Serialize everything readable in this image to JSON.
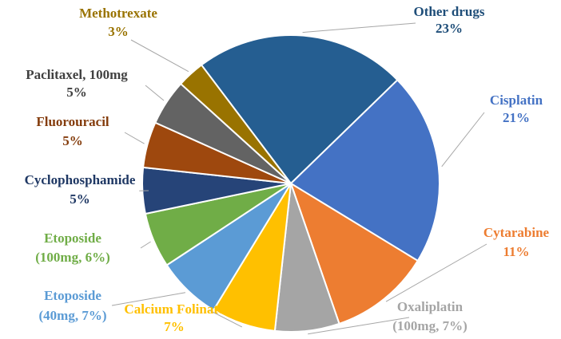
{
  "chart_data": {
    "type": "pie",
    "slices": [
      {
        "name": "Other drugs",
        "pct_text": "23%",
        "value": 23,
        "color": "#255e91"
      },
      {
        "name": "Cisplatin",
        "pct_text": "21%",
        "value": 21,
        "color": "#4472c4"
      },
      {
        "name": "Cytarabine",
        "pct_text": "11%",
        "value": 11,
        "color": "#ed7d31"
      },
      {
        "name": "Oxaliplatin",
        "pct_text": "(100mg, 7%)",
        "value": 7,
        "color": "#a5a5a5"
      },
      {
        "name": "Calcium Folinate",
        "pct_text": "7%",
        "value": 7,
        "color": "#ffc000"
      },
      {
        "name": "Etoposide",
        "pct_text": "(40mg, 7%)",
        "value": 7,
        "color": "#5b9bd5"
      },
      {
        "name": "Etoposide",
        "pct_text": "(100mg, 6%)",
        "value": 6,
        "color": "#70ad47"
      },
      {
        "name": "Cyclophosphamide",
        "pct_text": "5%",
        "value": 5,
        "color": "#264478"
      },
      {
        "name": "Fluorouracil",
        "pct_text": "5%",
        "value": 5,
        "color": "#9e480e"
      },
      {
        "name": "Paclitaxel, 100mg",
        "pct_text": "5%",
        "value": 5,
        "color": "#636363"
      },
      {
        "name": "Methotrexate",
        "pct_text": "3%",
        "value": 3,
        "color": "#997300"
      }
    ]
  }
}
